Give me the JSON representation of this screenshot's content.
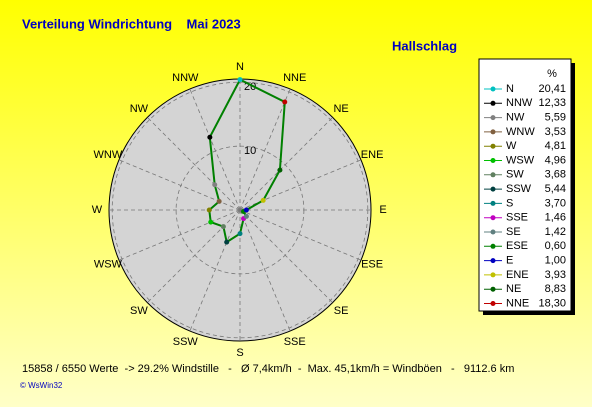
{
  "title": "Verteilung Windrichtung    Mai 2023",
  "subtitle": "Hallschlag",
  "legend_header": "%",
  "footer": "15858 / 6550 Werte  -> 29.2% Windstille   -   Ø 7,4km/h  -  Max. 45,1km/h = Windböen   -   9112.6 km",
  "credit": "© WsWin32",
  "chart_data": {
    "type": "radar",
    "categories": [
      "N",
      "NNW",
      "NW",
      "WNW",
      "W",
      "WSW",
      "SW",
      "SSW",
      "S",
      "SSE",
      "SE",
      "ESE",
      "E",
      "ENE",
      "NE",
      "NNE"
    ],
    "values": [
      20.41,
      12.33,
      5.59,
      3.53,
      4.81,
      4.96,
      3.68,
      5.44,
      3.7,
      1.46,
      1.42,
      0.6,
      1.0,
      3.93,
      8.83,
      18.3
    ],
    "value_labels": [
      "20,41",
      "12,33",
      "5,59",
      "3,53",
      "4,81",
      "4,96",
      "3,68",
      "5,44",
      "3,70",
      "1,46",
      "1,42",
      "0,60",
      "1,00",
      "3,93",
      "8,83",
      "18,30"
    ],
    "colors": [
      "#00c0c0",
      "#000000",
      "#808080",
      "#806040",
      "#808000",
      "#00c000",
      "#608060",
      "#004040",
      "#008080",
      "#c000c0",
      "#608080",
      "#008000",
      "#0000c0",
      "#c0c000",
      "#006000",
      "#c00000"
    ],
    "line_color": "#008000",
    "rlim": [
      0,
      20.5
    ],
    "rticks": [
      10,
      20
    ]
  }
}
